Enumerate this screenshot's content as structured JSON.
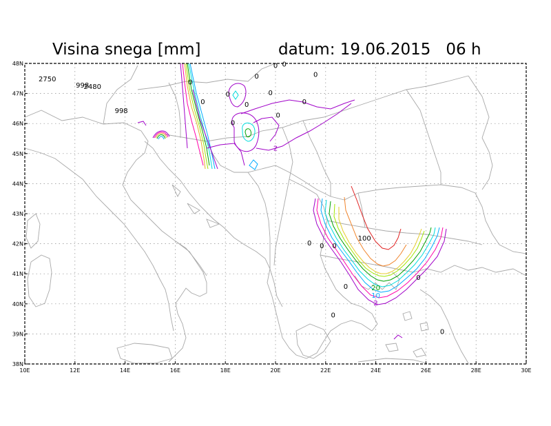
{
  "title": {
    "left": "Visina snega [mm]",
    "right": "datum: 19.06.2015   06 h"
  },
  "axes": {
    "x_ticks": [
      "10E",
      "12E",
      "14E",
      "16E",
      "18E",
      "20E",
      "22E",
      "24E",
      "26E",
      "28E",
      "30E"
    ],
    "y_ticks": [
      "48N",
      "47N",
      "46N",
      "45N",
      "44N",
      "43N",
      "42N",
      "41N",
      "40N",
      "39N",
      "38N"
    ],
    "lon_range": [
      10,
      30
    ],
    "lat_range": [
      38,
      48
    ],
    "grid": true
  },
  "station_labels": [
    {
      "text": "2750",
      "lon": 10.9,
      "lat": 47.4
    },
    {
      "text": "998",
      "lon": 12.3,
      "lat": 47.2
    },
    {
      "text": "2480",
      "lon": 12.7,
      "lat": 47.15
    },
    {
      "text": "998",
      "lon": 13.85,
      "lat": 46.35
    },
    {
      "text": "0",
      "lon": 20.0,
      "lat": 47.85
    },
    {
      "text": "0",
      "lon": 20.35,
      "lat": 47.9
    },
    {
      "text": "0",
      "lon": 16.6,
      "lat": 47.3
    },
    {
      "text": "0",
      "lon": 17.1,
      "lat": 46.65
    },
    {
      "text": "0",
      "lon": 18.1,
      "lat": 46.9
    },
    {
      "text": "0",
      "lon": 19.25,
      "lat": 47.5
    },
    {
      "text": "0",
      "lon": 19.8,
      "lat": 46.95
    },
    {
      "text": "0",
      "lon": 21.6,
      "lat": 47.55
    },
    {
      "text": "0",
      "lon": 18.85,
      "lat": 46.55
    },
    {
      "text": "0",
      "lon": 20.1,
      "lat": 46.2
    },
    {
      "text": "0",
      "lon": 21.15,
      "lat": 46.65
    },
    {
      "text": "0",
      "lon": 18.3,
      "lat": 45.95
    },
    {
      "text": "0",
      "lon": 21.35,
      "lat": 41.95
    },
    {
      "text": "0",
      "lon": 21.85,
      "lat": 41.85
    },
    {
      "text": "0",
      "lon": 22.35,
      "lat": 41.85
    },
    {
      "text": "0",
      "lon": 22.8,
      "lat": 40.5
    },
    {
      "text": "0",
      "lon": 25.7,
      "lat": 40.8
    },
    {
      "text": "0",
      "lon": 22.3,
      "lat": 39.55
    },
    {
      "text": "0",
      "lon": 26.65,
      "lat": 39.0
    }
  ],
  "contour_labels": [
    {
      "text": "2",
      "lon": 20.0,
      "lat": 45.1,
      "color": "#a000c8"
    },
    {
      "text": "100",
      "lon": 23.55,
      "lat": 42.1,
      "color": "#000000"
    },
    {
      "text": "20",
      "lon": 24.0,
      "lat": 40.45,
      "color": "#00a000"
    },
    {
      "text": "10",
      "lon": 24.0,
      "lat": 40.2,
      "color": "#00aaff"
    },
    {
      "text": "2",
      "lon": 24.0,
      "lat": 39.95,
      "color": "#a000c8"
    }
  ],
  "contour_colors": [
    "#a000c8",
    "#ff00aa",
    "#00aaff",
    "#00dcdc",
    "#00a000",
    "#a0e600",
    "#e6af2d",
    "#f08228"
  ]
}
